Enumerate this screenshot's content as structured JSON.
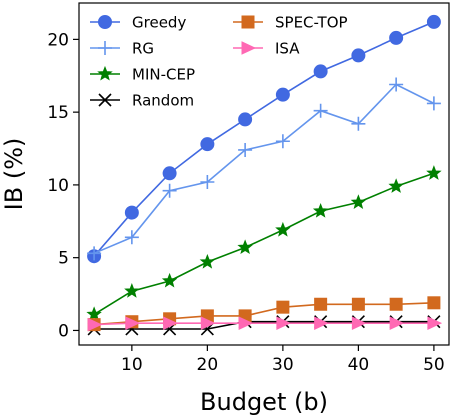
{
  "chart_data": {
    "type": "line",
    "xlabel": "Budget (b)",
    "ylabel": "IB (%)",
    "x": [
      5,
      10,
      15,
      20,
      25,
      30,
      35,
      40,
      45,
      50
    ],
    "xlim": [
      3,
      52
    ],
    "ylim": [
      -1,
      22.5
    ],
    "xticks": [
      10,
      20,
      30,
      40,
      50
    ],
    "yticks": [
      0,
      5,
      10,
      15,
      20
    ],
    "grid": false,
    "legend": {
      "placement": "top-left",
      "columns": 2
    },
    "series": [
      {
        "name": "Greedy",
        "color": "#4169e1",
        "marker": "circle",
        "values": [
          5.1,
          8.1,
          10.8,
          12.8,
          14.5,
          16.2,
          17.8,
          18.9,
          20.1,
          21.2
        ]
      },
      {
        "name": "RG",
        "color": "#6495ed",
        "marker": "plus",
        "values": [
          5.3,
          6.4,
          9.6,
          10.2,
          12.4,
          13.0,
          15.1,
          14.2,
          16.9,
          15.6
        ]
      },
      {
        "name": "MIN-CEP",
        "color": "#008000",
        "marker": "star",
        "values": [
          1.1,
          2.7,
          3.4,
          4.7,
          5.7,
          6.9,
          8.2,
          8.8,
          9.9,
          10.8
        ]
      },
      {
        "name": "Random",
        "color": "#000000",
        "marker": "x",
        "values": [
          0.1,
          0.1,
          0.1,
          0.1,
          0.6,
          0.6,
          0.6,
          0.6,
          0.6,
          0.6
        ]
      },
      {
        "name": "SPEC-TOP",
        "color": "#d2691e",
        "marker": "square",
        "values": [
          0.4,
          0.6,
          0.8,
          1.0,
          1.0,
          1.6,
          1.8,
          1.8,
          1.8,
          1.9
        ]
      },
      {
        "name": "ISA",
        "color": "#ff69b4",
        "marker": "triangle-right",
        "values": [
          0.4,
          0.5,
          0.5,
          0.5,
          0.5,
          0.5,
          0.5,
          0.5,
          0.5,
          0.5
        ]
      }
    ]
  }
}
